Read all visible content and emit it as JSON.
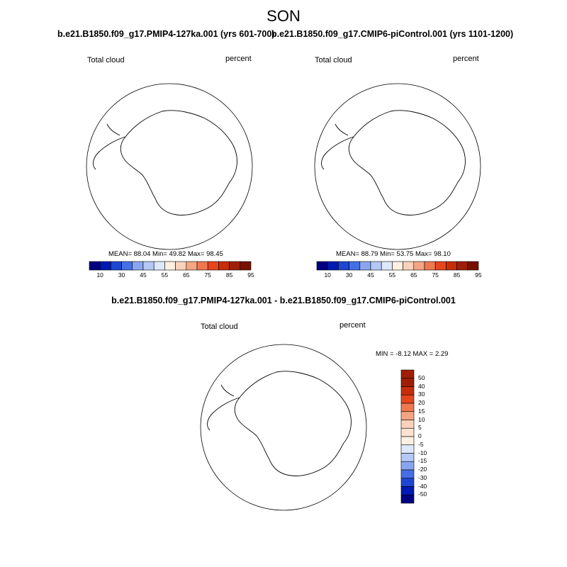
{
  "title": "SON",
  "panels": [
    {
      "title": "b.e21.B1850.f09_g17.PMIP4-127ka.001 (yrs 601-700)",
      "variable": "Total cloud",
      "units": "percent",
      "stats": "MEAN=  88.04  Min=  49.82  Max=  98.45"
    },
    {
      "title": "b.e21.B1850.f09_g17.CMIP6-piControl.001 (yrs 1101-1200)",
      "variable": "Total cloud",
      "units": "percent",
      "stats": "MEAN=  88.79  Min=  53.75  Max=  98.10"
    }
  ],
  "colorbar_main": {
    "labels": [
      "10",
      "30",
      "45",
      "55",
      "65",
      "75",
      "85",
      "95"
    ],
    "colors": [
      "#000080",
      "#0019b3",
      "#1e46d2",
      "#466ee6",
      "#8aa5f0",
      "#b4c8f5",
      "#dce8fb",
      "#fff0e1",
      "#fad2bb",
      "#f5a582",
      "#ef7850",
      "#e6461e",
      "#c82d0a",
      "#a01e05",
      "#781000"
    ]
  },
  "difference": {
    "title": "b.e21.B1850.f09_g17.PMIP4-127ka.001 - b.e21.B1850.f09_g17.CMIP6-piControl.001",
    "variable": "Total cloud",
    "units": "percent",
    "stats": "MIN =  -8.12 MAX =   2.29",
    "colorbar_labels": [
      "50",
      "40",
      "30",
      "20",
      "15",
      "10",
      "5",
      "0",
      "-5",
      "-10",
      "-15",
      "-20",
      "-30",
      "-40",
      "-50"
    ],
    "colorbar_colors": [
      "#a01e05",
      "#c82d0a",
      "#e6461e",
      "#ef7850",
      "#f5a582",
      "#fad2bb",
      "#fde2cf",
      "#fff0e1",
      "#dce8fb",
      "#b4c8f5",
      "#8aa5f0",
      "#466ee6",
      "#1e46d2",
      "#0019b3",
      "#000080"
    ]
  }
}
